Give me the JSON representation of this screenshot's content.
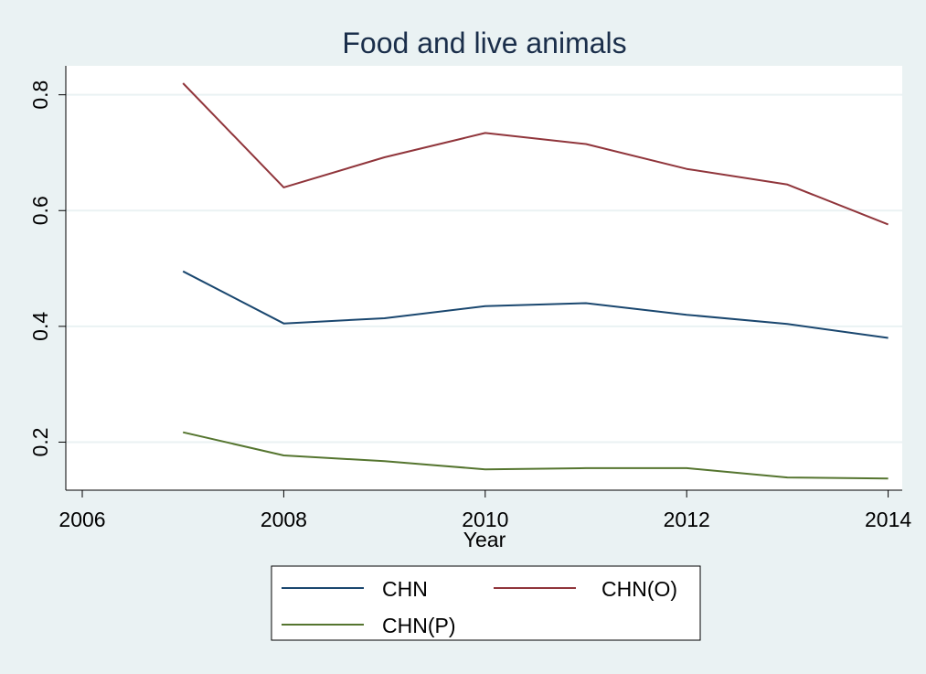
{
  "chart_data": {
    "type": "line",
    "title": "Food and live animals",
    "xlabel": "Year",
    "ylabel": "",
    "xlim": [
      2006,
      2014
    ],
    "ylim": [
      0.117,
      0.85
    ],
    "xticks": [
      2006,
      2008,
      2010,
      2012,
      2014
    ],
    "yticks": [
      0.2,
      0.4,
      0.6,
      0.8
    ],
    "grid": "horizontal",
    "legend_position": "bottom",
    "x": [
      2007,
      2008,
      2009,
      2010,
      2011,
      2012,
      2013,
      2014
    ],
    "series": [
      {
        "name": "CHN",
        "color": "#1a476f",
        "values": [
          0.495,
          0.405,
          0.414,
          0.435,
          0.44,
          0.42,
          0.404,
          0.38
        ]
      },
      {
        "name": "CHN(O)",
        "color": "#90353b",
        "values": [
          0.82,
          0.64,
          0.692,
          0.734,
          0.715,
          0.672,
          0.645,
          0.576
        ]
      },
      {
        "name": "CHN(P)",
        "color": "#55752f",
        "values": [
          0.217,
          0.177,
          0.167,
          0.153,
          0.155,
          0.155,
          0.139,
          0.137
        ]
      }
    ]
  }
}
